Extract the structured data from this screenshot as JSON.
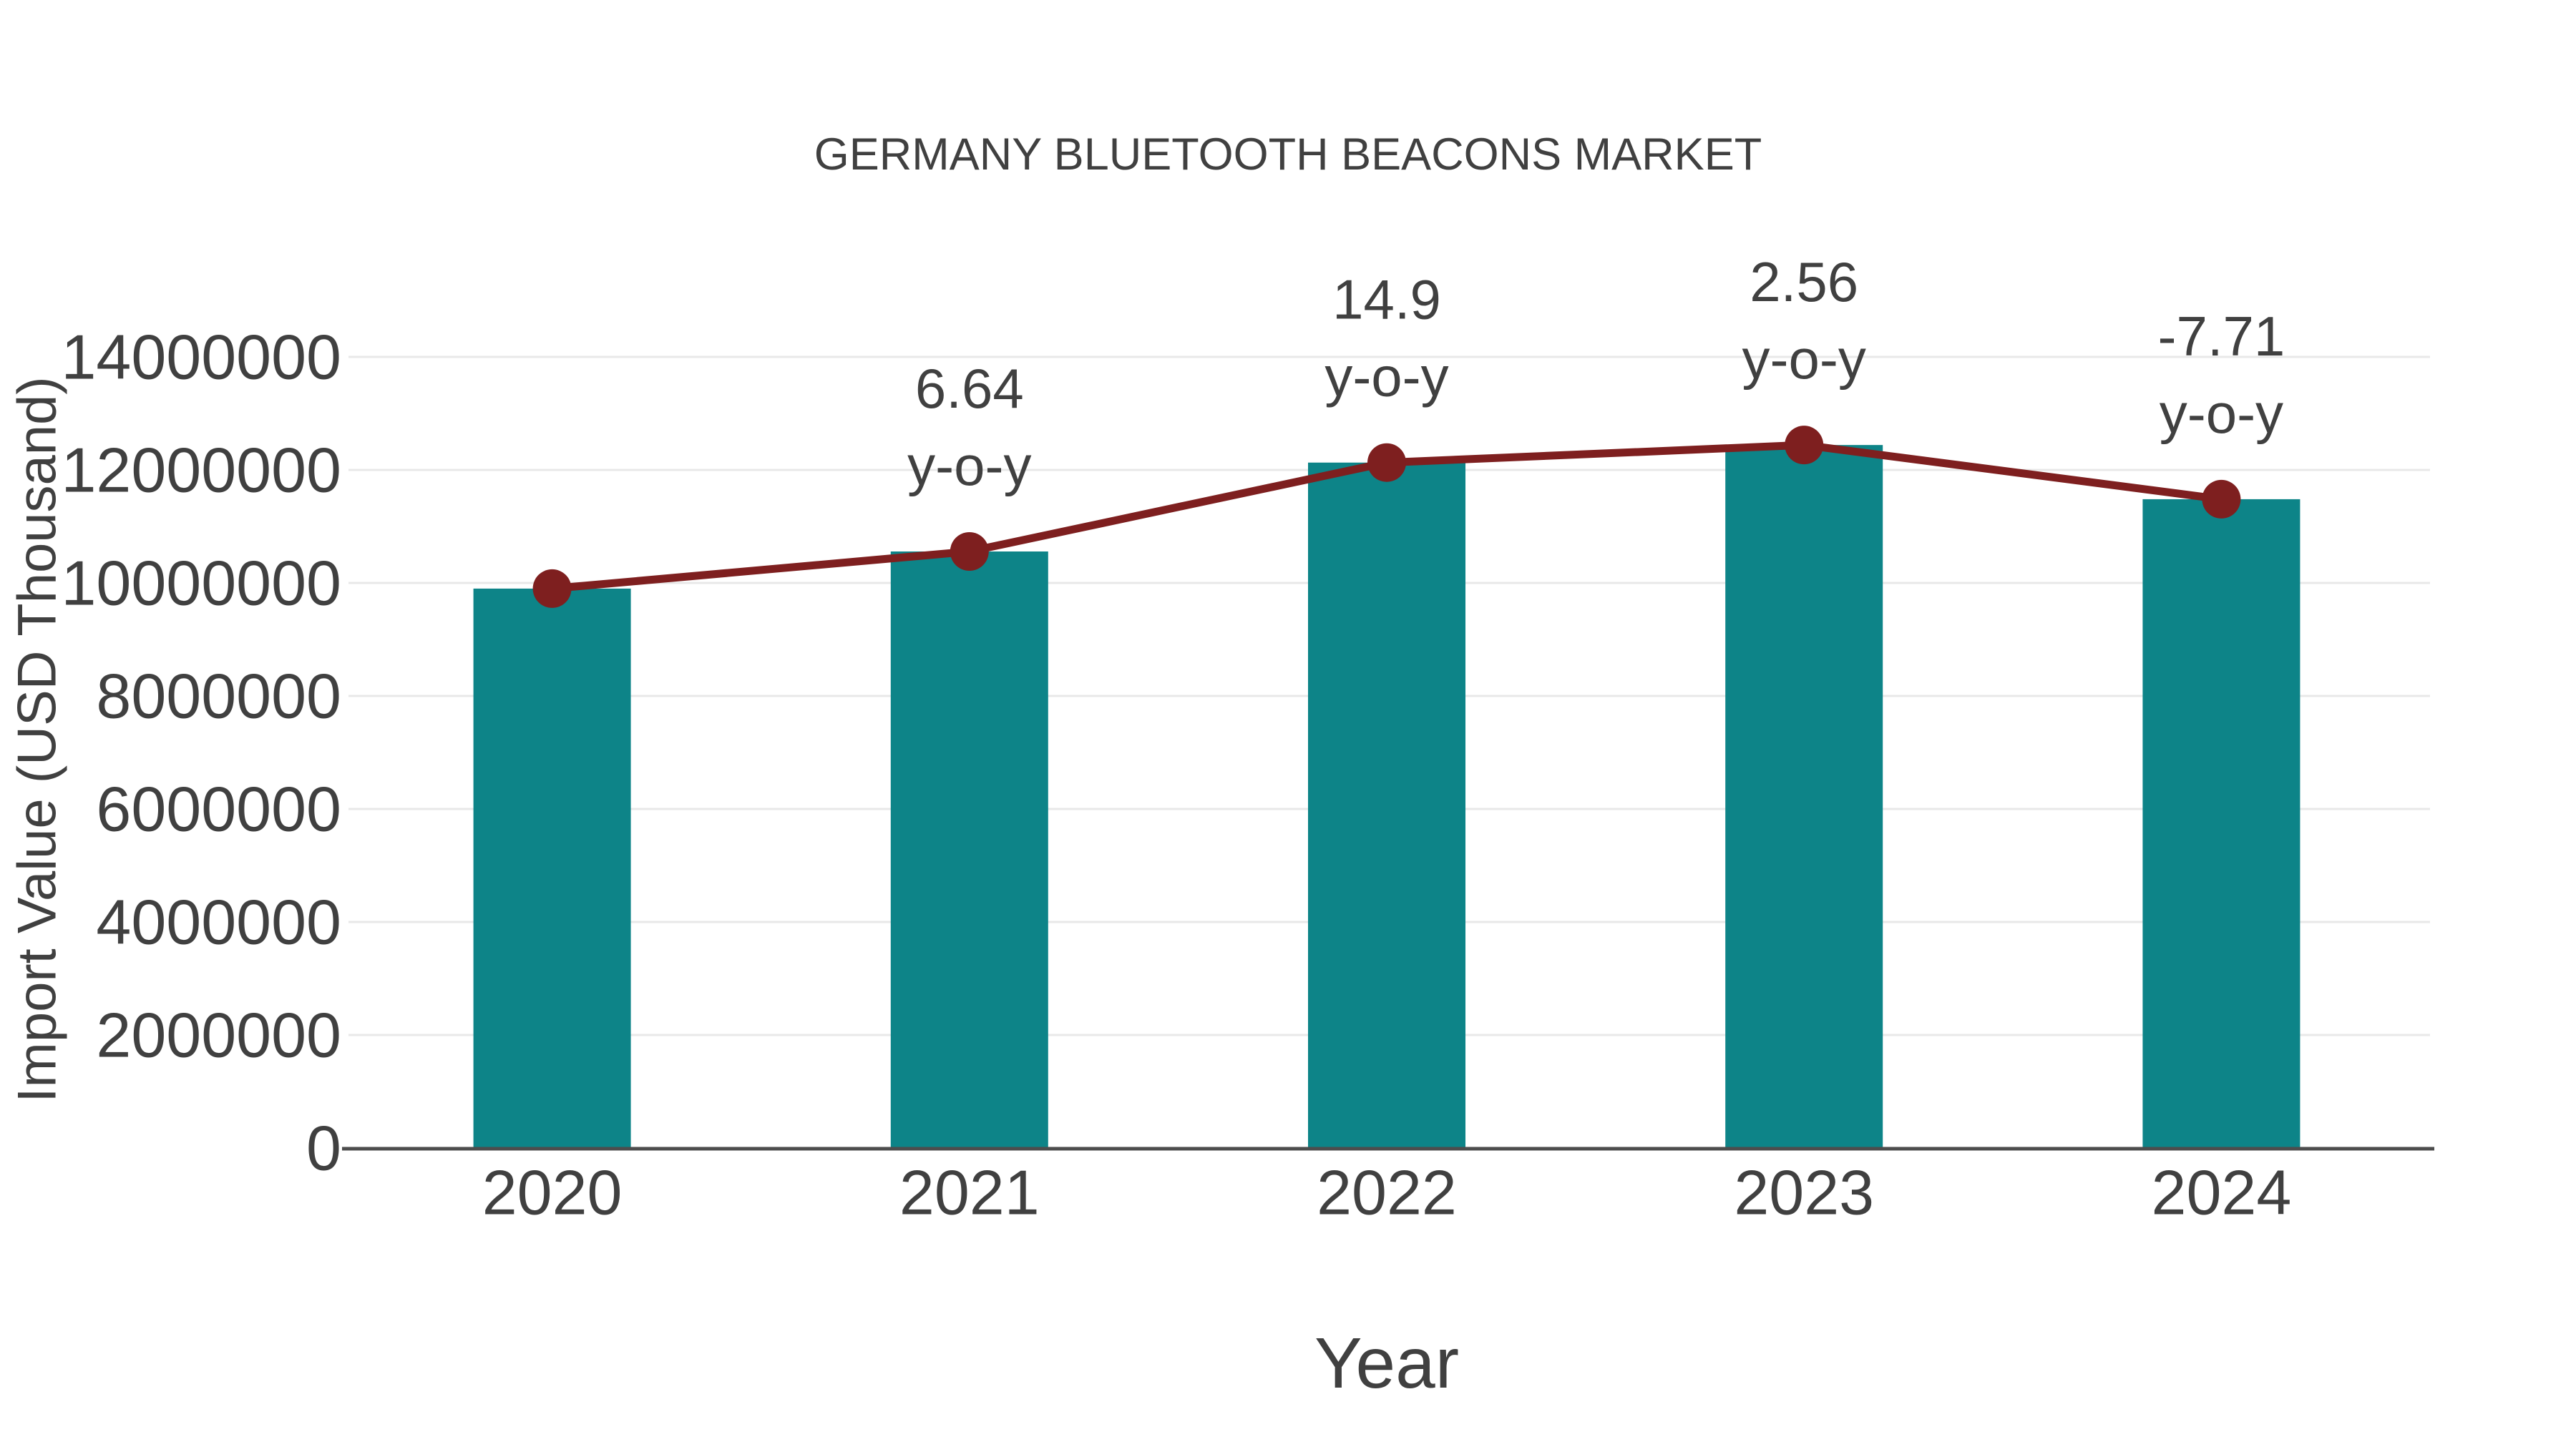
{
  "page": {
    "background": "#FFFFFF"
  },
  "chart_data": {
    "type": "bar",
    "title": "GERMANY BLUETOOTH BEACONS MARKET",
    "xlabel": "Year",
    "ylabel": "Import Value (USD Thousand)",
    "categories": [
      "2020",
      "2021",
      "2022",
      "2023",
      "2024"
    ],
    "series": [
      {
        "name": "Import Value bars",
        "type": "bar",
        "values": [
          9900000,
          10557000,
          12130000,
          12441000,
          11482000
        ]
      },
      {
        "name": "Import Value trend line",
        "type": "line",
        "values": [
          9900000,
          10557000,
          12130000,
          12441000,
          11482000
        ]
      }
    ],
    "yoy_annotations": [
      {
        "category": "2021",
        "value": "6.64",
        "suffix": "y-o-y"
      },
      {
        "category": "2022",
        "value": "14.9",
        "suffix": "y-o-y"
      },
      {
        "category": "2023",
        "value": "2.56",
        "suffix": "y-o-y"
      },
      {
        "category": "2024",
        "value": "-7.71",
        "suffix": "y-o-y"
      }
    ],
    "yticks": [
      0,
      2000000,
      4000000,
      6000000,
      8000000,
      10000000,
      12000000,
      14000000
    ],
    "ylim": [
      0,
      14000000
    ],
    "grid": true,
    "legend": "none",
    "colors": {
      "bar": "#0D8488",
      "line": "#7E1F1F",
      "marker": "#7E1F1F",
      "text": "#404040",
      "grid": "#E8E8E8",
      "axis": "#4D4D4D"
    }
  }
}
